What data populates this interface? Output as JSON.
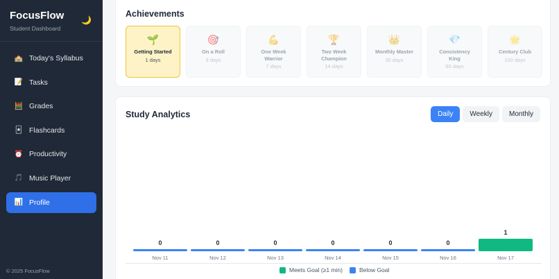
{
  "sidebar": {
    "title": "FocusFlow",
    "subtitle": "Student Dashboard",
    "theme_toggle_icon": "🌙",
    "items": [
      {
        "label": "Today's Syllabus",
        "icon": "🏫",
        "icon_name": "school-icon",
        "active": false
      },
      {
        "label": "Tasks",
        "icon": "📝",
        "icon_name": "memo-icon",
        "active": false
      },
      {
        "label": "Grades",
        "icon": "🧮",
        "icon_name": "abacus-icon",
        "active": false
      },
      {
        "label": "Flashcards",
        "icon": "🃏",
        "icon_name": "flashcard-icon",
        "active": false
      },
      {
        "label": "Productivity",
        "icon": "⏰",
        "icon_name": "alarm-clock-icon",
        "active": false
      },
      {
        "label": "Music Player",
        "icon": "🎵",
        "icon_name": "music-note-icon",
        "active": false
      },
      {
        "label": "Profile",
        "icon": "📊",
        "icon_name": "bar-chart-icon",
        "active": true
      }
    ],
    "footer": "© 2025 FocusFlow"
  },
  "achievements": {
    "title": "Achievements",
    "items": [
      {
        "name": "Getting Started",
        "days": "1 days",
        "icon": "🌱",
        "icon_name": "seedling-icon",
        "unlocked": true
      },
      {
        "name": "On a Roll",
        "days": "3 days",
        "icon": "🎯",
        "icon_name": "target-icon",
        "unlocked": false
      },
      {
        "name": "One Week Warrior",
        "days": "7 days",
        "icon": "💪",
        "icon_name": "flexed-bicep-icon",
        "unlocked": false
      },
      {
        "name": "Two Week Champion",
        "days": "14 days",
        "icon": "🏆",
        "icon_name": "trophy-icon",
        "unlocked": false
      },
      {
        "name": "Monthly Master",
        "days": "30 days",
        "icon": "👑",
        "icon_name": "crown-icon",
        "unlocked": false
      },
      {
        "name": "Consistency King",
        "days": "60 days",
        "icon": "💎",
        "icon_name": "gem-icon",
        "unlocked": false
      },
      {
        "name": "Century Club",
        "days": "100 days",
        "icon": "🌟",
        "icon_name": "star-icon",
        "unlocked": false
      }
    ]
  },
  "analytics": {
    "title": "Study Analytics",
    "tabs": [
      {
        "label": "Daily",
        "active": true
      },
      {
        "label": "Weekly",
        "active": false
      },
      {
        "label": "Monthly",
        "active": false
      }
    ],
    "legend": [
      {
        "label": "Meets Goal (≥1 min)",
        "color": "#10b981"
      },
      {
        "label": "Below Goal",
        "color": "#3b82f6"
      }
    ]
  },
  "chart_data": {
    "type": "bar",
    "title": "Study Analytics",
    "categories": [
      "Nov 11",
      "Nov 12",
      "Nov 13",
      "Nov 14",
      "Nov 15",
      "Nov 16",
      "Nov 17"
    ],
    "values": [
      0,
      0,
      0,
      0,
      0,
      0,
      1
    ],
    "series": [
      {
        "name": "Meets Goal (≥1 min)",
        "color": "#10b981",
        "values": [
          null,
          null,
          null,
          null,
          null,
          null,
          1
        ]
      },
      {
        "name": "Below Goal",
        "color": "#3b82f6",
        "values": [
          0,
          0,
          0,
          0,
          0,
          0,
          null
        ]
      }
    ],
    "xlabel": "",
    "ylabel": "",
    "grid": false,
    "legend_position": "bottom",
    "ylim": [
      0,
      1
    ]
  }
}
